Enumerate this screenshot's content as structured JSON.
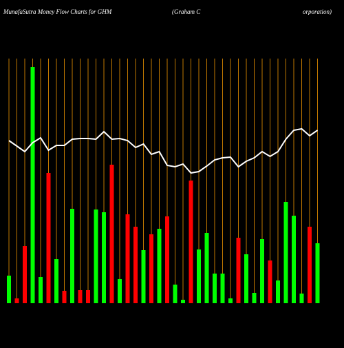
{
  "chart_data": {
    "type": "bar",
    "title": "MunafaSutra  Money Flow  Charts for GHM",
    "subtitle": [
      "(Graham C",
      "orporation)"
    ],
    "values": [
      40,
      7,
      83,
      343,
      38,
      189,
      64,
      18,
      137,
      19,
      19,
      136,
      132,
      201,
      35,
      129,
      111,
      77,
      100,
      108,
      126,
      27,
      5,
      178,
      78,
      102,
      43,
      43,
      7,
      95,
      71,
      15,
      93,
      62,
      33,
      147,
      127,
      14,
      111,
      87
    ],
    "colors": [
      "#00ff00",
      "#ff0000",
      "#ff0000",
      "#00ff00",
      "#00ff00",
      "#ff0000",
      "#00ff00",
      "#ff0000",
      "#00ff00",
      "#ff0000",
      "#ff0000",
      "#00ff00",
      "#00ff00",
      "#ff0000",
      "#00ff00",
      "#ff0000",
      "#ff0000",
      "#00ff00",
      "#ff0000",
      "#00ff00",
      "#ff0000",
      "#00ff00",
      "#00ff00",
      "#ff0000",
      "#00ff00",
      "#00ff00",
      "#00ff00",
      "#00ff00",
      "#00ff00",
      "#ff0000",
      "#00ff00",
      "#00ff00",
      "#00ff00",
      "#ff0000",
      "#00ff00",
      "#00ff00",
      "#00ff00",
      "#00ff00",
      "#ff0000",
      "#00ff00"
    ],
    "line": [
      236,
      228,
      220,
      233,
      240,
      222,
      229,
      229,
      238,
      239,
      239,
      238,
      249,
      238,
      239,
      236,
      226,
      231,
      216,
      220,
      200,
      198,
      202,
      189,
      191,
      199,
      208,
      211,
      212,
      198,
      206,
      211,
      220,
      213,
      220,
      238,
      251,
      253,
      243,
      251
    ]
  }
}
